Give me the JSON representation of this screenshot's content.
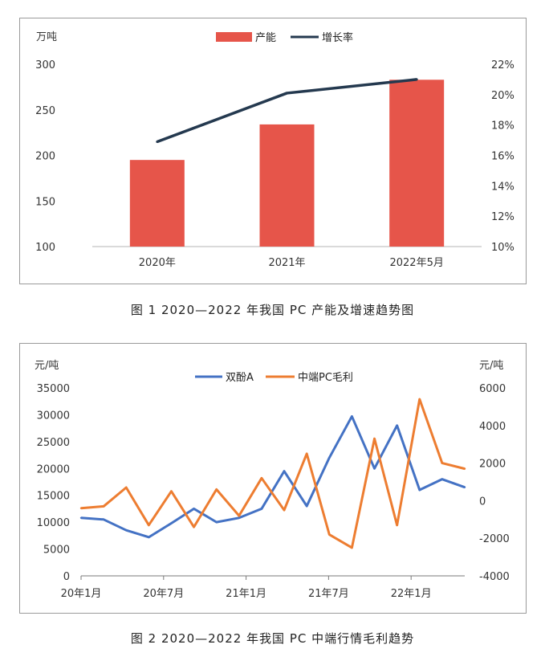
{
  "figure1": {
    "caption": "图 1  2020—2022 年我国 PC 产能及增速趋势图",
    "left_unit": "万吨",
    "legend": {
      "bar": "产能",
      "line": "增长率"
    }
  },
  "figure2": {
    "caption": "图 2  2020—2022 年我国 PC 中端行情毛利趋势",
    "left_unit": "元/吨",
    "right_unit": "元/吨",
    "legend": {
      "s1": "双酚A",
      "s2": "中端PC毛利"
    }
  },
  "chart_data": [
    {
      "type": "bar",
      "categories": [
        "2020年",
        "2021年",
        "2022年5月"
      ],
      "series": [
        {
          "name": "产能",
          "type": "bar",
          "axis": "left",
          "values": [
            195,
            234,
            283
          ],
          "color": "#e6554a"
        },
        {
          "name": "增长率",
          "type": "line",
          "axis": "right",
          "unit": "%",
          "values": [
            16.9,
            20.1,
            21.0
          ],
          "color": "#24394f"
        }
      ],
      "ylabel": "万吨",
      "ylim": [
        100,
        300
      ],
      "yticks": [
        "100",
        "150",
        "200",
        "250",
        "300"
      ],
      "y2lim": [
        10,
        22
      ],
      "y2ticks": [
        "10%",
        "12%",
        "14%",
        "16%",
        "18%",
        "20%",
        "22%"
      ],
      "legend_position": "top-center",
      "grid": false
    },
    {
      "type": "line",
      "x_labels": [
        "20年1月",
        "20年7月",
        "21年1月",
        "21年7月",
        "22年1月"
      ],
      "x": [
        0,
        2,
        4,
        6,
        8,
        10,
        12,
        14,
        16,
        18,
        20,
        22,
        24,
        26,
        28,
        30,
        32,
        34
      ],
      "series": [
        {
          "name": "双酚A",
          "axis": "left",
          "color": "#4472c4",
          "values": [
            10800,
            10500,
            8500,
            7200,
            9800,
            12500,
            10000,
            10800,
            12500,
            19500,
            13000,
            22000,
            29700,
            20000,
            28000,
            16000,
            18000,
            16500
          ]
        },
        {
          "name": "中端PC毛利",
          "axis": "right",
          "color": "#ed7d31",
          "values": [
            -400,
            -300,
            700,
            -1300,
            500,
            -1400,
            600,
            -800,
            1200,
            -500,
            2500,
            -1800,
            -2500,
            3300,
            -1300,
            5400,
            2000,
            1700
          ]
        }
      ],
      "ylim": [
        0,
        35000
      ],
      "yticks": [
        "0",
        "5000",
        "10000",
        "15000",
        "20000",
        "25000",
        "30000",
        "35000"
      ],
      "y2lim": [
        -4000,
        6000
      ],
      "y2ticks": [
        "-4000",
        "-2000",
        "0",
        "2000",
        "4000",
        "6000"
      ],
      "legend_position": "top-center",
      "grid": false
    }
  ]
}
